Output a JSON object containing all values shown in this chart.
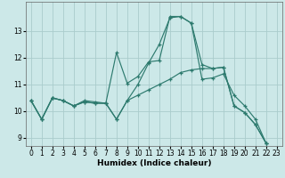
{
  "xlabel": "Humidex (Indice chaleur)",
  "bg_color": "#cce8e8",
  "grid_color": "#aacccc",
  "line_color": "#2d7a6e",
  "xlim": [
    -0.5,
    23.5
  ],
  "ylim": [
    8.7,
    14.1
  ],
  "xticks": [
    0,
    1,
    2,
    3,
    4,
    5,
    6,
    7,
    8,
    9,
    10,
    11,
    12,
    13,
    14,
    15,
    16,
    17,
    18,
    19,
    20,
    21,
    22,
    23
  ],
  "yticks": [
    9,
    10,
    11,
    12,
    13
  ],
  "series": [
    {
      "x": [
        0,
        1,
        2,
        3,
        4,
        5,
        6,
        7,
        8,
        9,
        10,
        11,
        12,
        13,
        14,
        15,
        16,
        17,
        18,
        19,
        20,
        21,
        22
      ],
      "y": [
        10.4,
        9.7,
        10.5,
        10.4,
        10.2,
        10.4,
        10.35,
        10.3,
        12.2,
        11.05,
        11.3,
        11.85,
        11.9,
        13.55,
        13.55,
        13.3,
        11.75,
        11.6,
        11.65,
        10.2,
        9.95,
        9.5,
        8.8
      ]
    },
    {
      "x": [
        0,
        1,
        2,
        3,
        4,
        5,
        6,
        7,
        8,
        9,
        10,
        11,
        12,
        13,
        14,
        15,
        16,
        17,
        18,
        19,
        20,
        21,
        22
      ],
      "y": [
        10.4,
        9.7,
        10.5,
        10.4,
        10.2,
        10.35,
        10.3,
        10.3,
        9.7,
        10.4,
        11.0,
        11.8,
        12.5,
        13.5,
        13.55,
        13.3,
        11.2,
        11.25,
        11.4,
        10.6,
        10.2,
        9.7,
        8.8
      ]
    },
    {
      "x": [
        0,
        1,
        2,
        3,
        4,
        5,
        6,
        7,
        8,
        9,
        10,
        11,
        12,
        13,
        14,
        15,
        16,
        17,
        18,
        19,
        20,
        21,
        22
      ],
      "y": [
        10.4,
        9.7,
        10.5,
        10.4,
        10.2,
        10.35,
        10.3,
        10.3,
        9.7,
        10.4,
        10.6,
        10.8,
        11.0,
        11.2,
        11.45,
        11.55,
        11.6,
        11.6,
        11.65,
        10.2,
        9.95,
        9.5,
        8.8
      ]
    }
  ]
}
